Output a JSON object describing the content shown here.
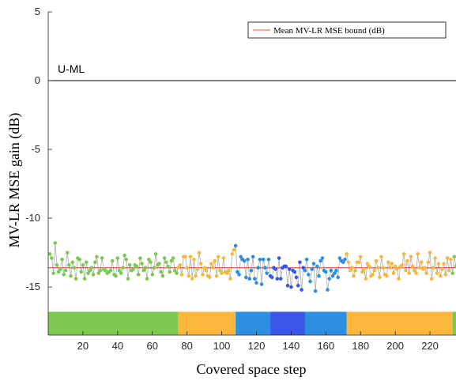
{
  "chart_data": {
    "type": "line",
    "xlabel": "Covered space step",
    "ylabel": "MV-LR MSE gain (dB)",
    "xlim": [
      0,
      235
    ],
    "ylim": [
      -18.5,
      5
    ],
    "x_ticks": [
      20,
      40,
      60,
      80,
      100,
      120,
      140,
      160,
      180,
      200,
      220
    ],
    "y_ticks": [
      5,
      0,
      -5,
      -10,
      -15
    ],
    "grid": false,
    "legend_position": "top-right",
    "reference_line": {
      "label": "U-ML",
      "y": 0,
      "color": "#000000"
    },
    "series": [
      {
        "name": "Mean MV-LR MSE bound (dB)",
        "kind": "hline",
        "y": -13.6,
        "color": "#e8504a"
      }
    ],
    "gain_series": {
      "line_color": "#b4b4b4",
      "y": [
        -12.6,
        -12.9,
        -14.0,
        -11.8,
        -13.4,
        -13.9,
        -13.7,
        -13.0,
        -14.1,
        -13.8,
        -12.5,
        -13.4,
        -14.2,
        -13.2,
        -13.6,
        -14.4,
        -12.9,
        -13.0,
        -13.9,
        -13.4,
        -14.4,
        -13.2,
        -14.0,
        -13.8,
        -13.6,
        -14.1,
        -13.2,
        -12.8,
        -14.0,
        -13.8,
        -12.9,
        -13.7,
        -13.8,
        -14.0,
        -13.9,
        -13.8,
        -13.1,
        -14.1,
        -14.2,
        -12.9,
        -13.8,
        -14.0,
        -13.6,
        -12.7,
        -13.0,
        -14.4,
        -13.4,
        -13.8,
        -13.7,
        -13.4,
        -13.5,
        -14.1,
        -12.9,
        -13.3,
        -13.8,
        -13.6,
        -14.4,
        -13.0,
        -13.2,
        -14.1,
        -13.6,
        -12.6,
        -13.4,
        -13.3,
        -13.9,
        -14.2,
        -12.9,
        -13.2,
        -13.5,
        -13.9,
        -13.1,
        -12.9,
        -13.8,
        -14.0,
        -13.6,
        -13.4,
        -14.1,
        -12.8,
        -12.8,
        -13.6,
        -14.2,
        -12.8,
        -14.4,
        -13.0,
        -14.2,
        -13.7,
        -12.5,
        -13.3,
        -14.1,
        -13.6,
        -13.8,
        -14.2,
        -14.3,
        -13.3,
        -13.6,
        -13.1,
        -14.2,
        -12.8,
        -13.8,
        -14.0,
        -12.9,
        -13.9,
        -14.0,
        -13.8,
        -14.4,
        -12.6,
        -12.3,
        -12.0,
        -13.9,
        -14.1,
        -12.8,
        -13.0,
        -13.1,
        -14.3,
        -13.0,
        -14.4,
        -13.8,
        -12.8,
        -14.4,
        -14.7,
        -13.6,
        -13.0,
        -14.8,
        -13.0,
        -13.6,
        -14.0,
        -13.0,
        -14.2,
        -14.3,
        -13.6,
        -13.7,
        -14.4,
        -12.9,
        -14.4,
        -13.6,
        -13.5,
        -13.5,
        -14.9,
        -13.7,
        -15.0,
        -13.8,
        -13.9,
        -14.3,
        -14.9,
        -13.2,
        -15.2,
        -13.6,
        -13.8,
        -13.0,
        -14.1,
        -14.6,
        -13.7,
        -13.3,
        -15.3,
        -13.5,
        -14.2,
        -13.1,
        -12.9,
        -13.8,
        -13.9,
        -15.2,
        -14.4,
        -13.8,
        -14.2,
        -14.0,
        -13.8,
        -14.3,
        -12.9,
        -13.1,
        -13.2,
        -13.0,
        -12.6,
        -13.2,
        -13.8,
        -13.6,
        -14.2,
        -13.8,
        -13.2,
        -13.2,
        -12.8,
        -13.9,
        -13.7,
        -14.4,
        -13.3,
        -13.5,
        -14.2,
        -14.1,
        -13.8,
        -13.1,
        -13.6,
        -14.3,
        -12.8,
        -13.6,
        -14.1,
        -14.2,
        -13.2,
        -13.6,
        -13.3,
        -14.0,
        -13.5,
        -13.7,
        -14.4,
        -13.5,
        -13.4,
        -12.6,
        -13.8,
        -13.1,
        -14.0,
        -12.8,
        -13.5,
        -13.8,
        -14.0,
        -12.6,
        -13.6,
        -13.2,
        -13.7,
        -13.6,
        -14.0,
        -13.2,
        -12.5,
        -14.4,
        -13.6,
        -12.9,
        -14.0,
        -13.3,
        -14.2,
        -13.7,
        -13.3,
        -14.1,
        -12.9,
        -13.8,
        -13.0,
        -14.0,
        -12.8,
        -13.5,
        -12.6,
        -13.2,
        -13.9,
        -12.8,
        -14.0,
        -13.3
      ]
    },
    "segments": [
      {
        "x_start": 0,
        "x_end": 75,
        "color": "#7ec850"
      },
      {
        "x_start": 75,
        "x_end": 108,
        "color": "#fbb63c"
      },
      {
        "x_start": 108,
        "x_end": 128,
        "color": "#2d8fe0"
      },
      {
        "x_start": 128,
        "x_end": 148,
        "color": "#3a55e8"
      },
      {
        "x_start": 148,
        "x_end": 172,
        "color": "#2d8fe0"
      },
      {
        "x_start": 172,
        "x_end": 233,
        "color": "#fbb63c"
      },
      {
        "x_start": 233,
        "x_end": 235,
        "color": "#7ec850"
      }
    ]
  }
}
